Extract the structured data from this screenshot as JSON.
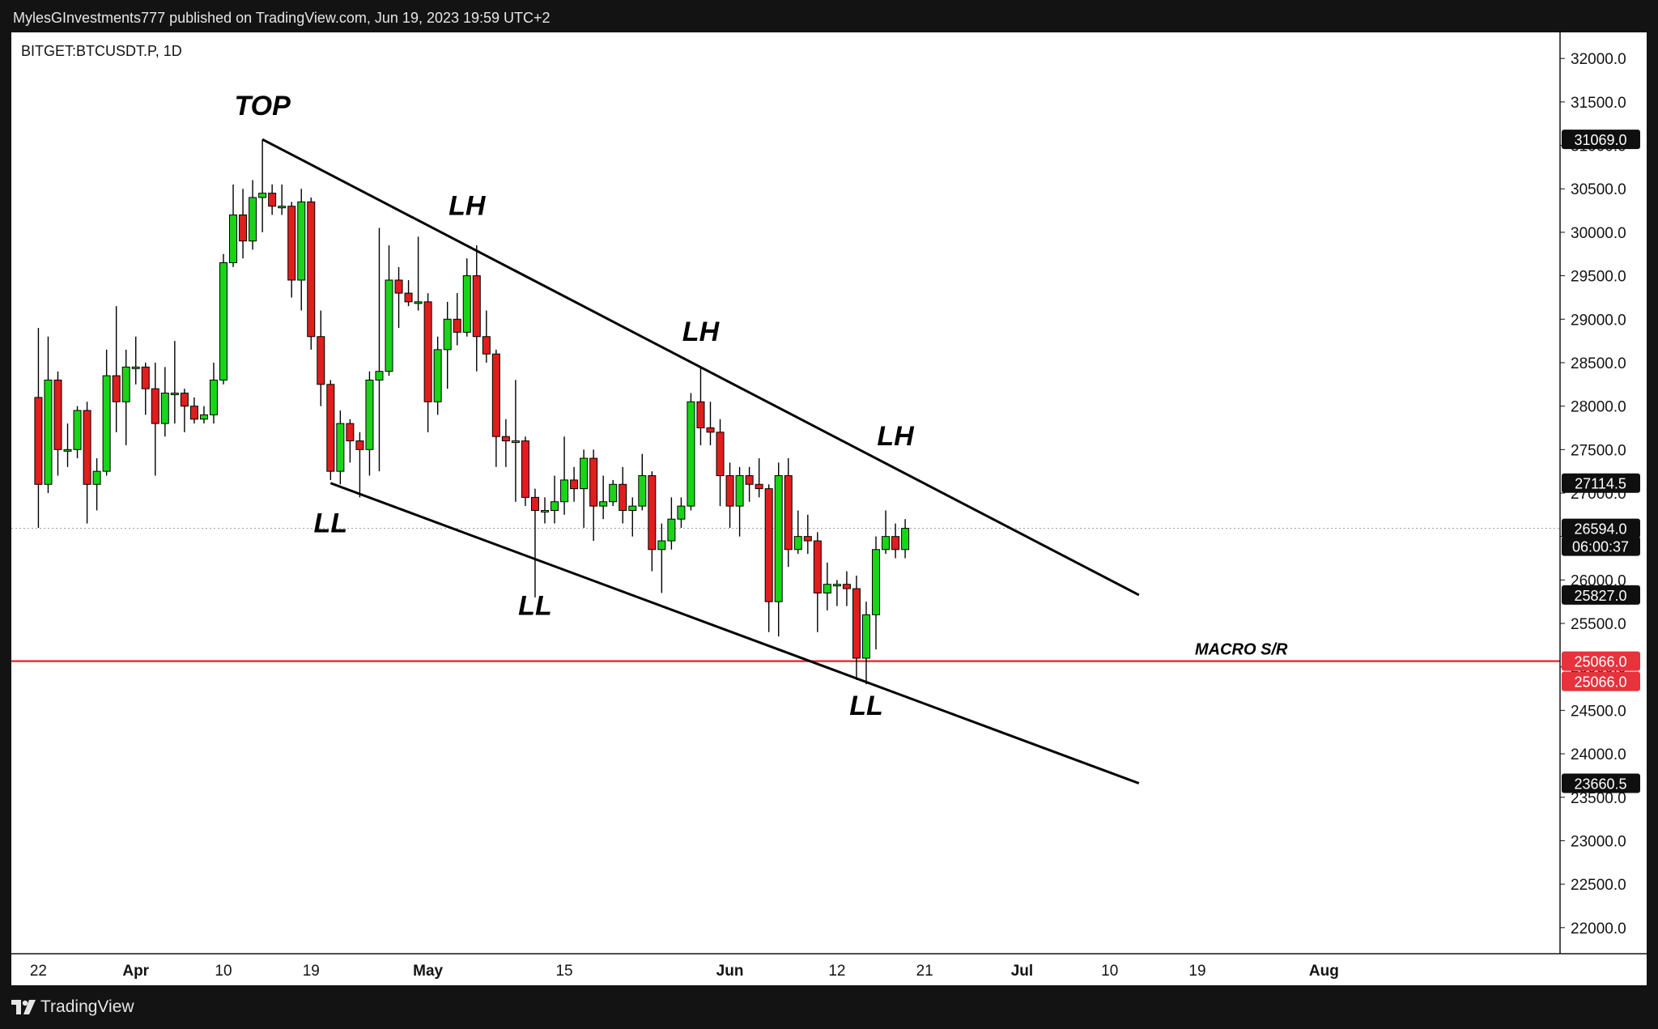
{
  "header": {
    "attribution": "MylesGInvestments777 published on TradingView.com, Jun 19, 2023 19:59 UTC+2"
  },
  "footer": {
    "brand": "TradingView",
    "logo_icon": "tradingview-logo-icon"
  },
  "colors": {
    "up": "#19d419",
    "down": "#e01e1e",
    "wick": "#000000",
    "support_line": "#e8323c",
    "background": "#ffffff",
    "frame": "#131313"
  },
  "chart_data": {
    "type": "candlestick",
    "symbol": "BITGET:BTCUSDT.P, 1D",
    "x_ticks": [
      "22",
      "Apr",
      "10",
      "19",
      "May",
      "15",
      "Jun",
      "12",
      "21",
      "Jul",
      "10",
      "19",
      "Aug"
    ],
    "y_ticks": [
      "22000.0",
      "22500.0",
      "23000.0",
      "23500.0",
      "24000.0",
      "24500.0",
      "25000.0",
      "25500.0",
      "26000.0",
      "26500.0",
      "27000.0",
      "27500.0",
      "28000.0",
      "28500.0",
      "29000.0",
      "29500.0",
      "30000.0",
      "30500.0",
      "31000.0",
      "31500.0",
      "32000.0"
    ],
    "ylim": [
      21700,
      32300
    ],
    "candles_note": "daily OHLC approx. Mar 22 – Jun 19, 2023",
    "candles": [
      {
        "d": "2023-03-22",
        "o": 28100,
        "h": 28900,
        "l": 26600,
        "c": 27100
      },
      {
        "d": "2023-03-23",
        "o": 27100,
        "h": 28800,
        "l": 27000,
        "c": 28300
      },
      {
        "d": "2023-03-24",
        "o": 28300,
        "h": 28400,
        "l": 27200,
        "c": 27500
      },
      {
        "d": "2023-03-25",
        "o": 27500,
        "h": 27800,
        "l": 27300,
        "c": 27500
      },
      {
        "d": "2023-03-26",
        "o": 27500,
        "h": 28000,
        "l": 27400,
        "c": 27950
      },
      {
        "d": "2023-03-27",
        "o": 27950,
        "h": 28050,
        "l": 26650,
        "c": 27100
      },
      {
        "d": "2023-03-28",
        "o": 27100,
        "h": 27400,
        "l": 26800,
        "c": 27250
      },
      {
        "d": "2023-03-29",
        "o": 27250,
        "h": 28650,
        "l": 27200,
        "c": 28350
      },
      {
        "d": "2023-03-30",
        "o": 28350,
        "h": 29150,
        "l": 27700,
        "c": 28050
      },
      {
        "d": "2023-03-31",
        "o": 28050,
        "h": 28650,
        "l": 27550,
        "c": 28450
      },
      {
        "d": "2023-04-01",
        "o": 28450,
        "h": 28800,
        "l": 28250,
        "c": 28450
      },
      {
        "d": "2023-04-02",
        "o": 28450,
        "h": 28500,
        "l": 27900,
        "c": 28200
      },
      {
        "d": "2023-04-03",
        "o": 28200,
        "h": 28500,
        "l": 27200,
        "c": 27800
      },
      {
        "d": "2023-04-04",
        "o": 27800,
        "h": 28450,
        "l": 27650,
        "c": 28150
      },
      {
        "d": "2023-04-05",
        "o": 28150,
        "h": 28750,
        "l": 27800,
        "c": 28150
      },
      {
        "d": "2023-04-06",
        "o": 28150,
        "h": 28200,
        "l": 27700,
        "c": 28000
      },
      {
        "d": "2023-04-07",
        "o": 28000,
        "h": 28100,
        "l": 27800,
        "c": 27850
      },
      {
        "d": "2023-04-08",
        "o": 27850,
        "h": 28000,
        "l": 27800,
        "c": 27900
      },
      {
        "d": "2023-04-09",
        "o": 27900,
        "h": 28500,
        "l": 27800,
        "c": 28300
      },
      {
        "d": "2023-04-10",
        "o": 28300,
        "h": 29750,
        "l": 28250,
        "c": 29650
      },
      {
        "d": "2023-04-11",
        "o": 29650,
        "h": 30550,
        "l": 29600,
        "c": 30200
      },
      {
        "d": "2023-04-12",
        "o": 30200,
        "h": 30500,
        "l": 29700,
        "c": 29900
      },
      {
        "d": "2023-04-13",
        "o": 29900,
        "h": 30600,
        "l": 29800,
        "c": 30400
      },
      {
        "d": "2023-04-14",
        "o": 30400,
        "h": 31069,
        "l": 30000,
        "c": 30450
      },
      {
        "d": "2023-04-15",
        "o": 30450,
        "h": 30550,
        "l": 30200,
        "c": 30300
      },
      {
        "d": "2023-04-16",
        "o": 30300,
        "h": 30550,
        "l": 30200,
        "c": 30300
      },
      {
        "d": "2023-04-17",
        "o": 30300,
        "h": 30350,
        "l": 29250,
        "c": 29450
      },
      {
        "d": "2023-04-18",
        "o": 29450,
        "h": 30500,
        "l": 29100,
        "c": 30350
      },
      {
        "d": "2023-04-19",
        "o": 30350,
        "h": 30400,
        "l": 28650,
        "c": 28800
      },
      {
        "d": "2023-04-20",
        "o": 28800,
        "h": 29100,
        "l": 28000,
        "c": 28250
      },
      {
        "d": "2023-04-21",
        "o": 28250,
        "h": 28300,
        "l": 27150,
        "c": 27250
      },
      {
        "d": "2023-04-22",
        "o": 27250,
        "h": 27950,
        "l": 27100,
        "c": 27800
      },
      {
        "d": "2023-04-23",
        "o": 27800,
        "h": 27850,
        "l": 27350,
        "c": 27600
      },
      {
        "d": "2023-04-24",
        "o": 27600,
        "h": 27700,
        "l": 26950,
        "c": 27500
      },
      {
        "d": "2023-04-25",
        "o": 27500,
        "h": 28400,
        "l": 27200,
        "c": 28300
      },
      {
        "d": "2023-04-26",
        "o": 28300,
        "h": 30050,
        "l": 27250,
        "c": 28400
      },
      {
        "d": "2023-04-27",
        "o": 28400,
        "h": 29850,
        "l": 28350,
        "c": 29450
      },
      {
        "d": "2023-04-28",
        "o": 29450,
        "h": 29600,
        "l": 28900,
        "c": 29300
      },
      {
        "d": "2023-04-29",
        "o": 29300,
        "h": 29450,
        "l": 29150,
        "c": 29200
      },
      {
        "d": "2023-04-30",
        "o": 29200,
        "h": 29950,
        "l": 29100,
        "c": 29200
      },
      {
        "d": "2023-05-01",
        "o": 29200,
        "h": 29300,
        "l": 27700,
        "c": 28050
      },
      {
        "d": "2023-05-02",
        "o": 28050,
        "h": 28800,
        "l": 27900,
        "c": 28650
      },
      {
        "d": "2023-05-03",
        "o": 28650,
        "h": 29200,
        "l": 28200,
        "c": 29000
      },
      {
        "d": "2023-05-04",
        "o": 29000,
        "h": 29300,
        "l": 28700,
        "c": 28850
      },
      {
        "d": "2023-05-05",
        "o": 28850,
        "h": 29700,
        "l": 28800,
        "c": 29500
      },
      {
        "d": "2023-05-06",
        "o": 29500,
        "h": 29850,
        "l": 28400,
        "c": 28800
      },
      {
        "d": "2023-05-07",
        "o": 28800,
        "h": 29100,
        "l": 28500,
        "c": 28600
      },
      {
        "d": "2023-05-08",
        "o": 28600,
        "h": 28650,
        "l": 27300,
        "c": 27650
      },
      {
        "d": "2023-05-09",
        "o": 27650,
        "h": 27850,
        "l": 27300,
        "c": 27600
      },
      {
        "d": "2023-05-10",
        "o": 27600,
        "h": 28300,
        "l": 26900,
        "c": 27600
      },
      {
        "d": "2023-05-11",
        "o": 27600,
        "h": 27650,
        "l": 26850,
        "c": 26950
      },
      {
        "d": "2023-05-12",
        "o": 26950,
        "h": 27050,
        "l": 25800,
        "c": 26800
      },
      {
        "d": "2023-05-13",
        "o": 26800,
        "h": 26950,
        "l": 26650,
        "c": 26800
      },
      {
        "d": "2023-05-14",
        "o": 26800,
        "h": 27200,
        "l": 26650,
        "c": 26900
      },
      {
        "d": "2023-05-15",
        "o": 26900,
        "h": 27650,
        "l": 26750,
        "c": 27150
      },
      {
        "d": "2023-05-16",
        "o": 27150,
        "h": 27300,
        "l": 26900,
        "c": 27050
      },
      {
        "d": "2023-05-17",
        "o": 27050,
        "h": 27500,
        "l": 26600,
        "c": 27400
      },
      {
        "d": "2023-05-18",
        "o": 27400,
        "h": 27500,
        "l": 26450,
        "c": 26850
      },
      {
        "d": "2023-05-19",
        "o": 26850,
        "h": 27200,
        "l": 26700,
        "c": 26900
      },
      {
        "d": "2023-05-20",
        "o": 26900,
        "h": 27150,
        "l": 26850,
        "c": 27100
      },
      {
        "d": "2023-05-21",
        "o": 27100,
        "h": 27300,
        "l": 26650,
        "c": 26800
      },
      {
        "d": "2023-05-22",
        "o": 26800,
        "h": 26950,
        "l": 26500,
        "c": 26850
      },
      {
        "d": "2023-05-23",
        "o": 26850,
        "h": 27450,
        "l": 26800,
        "c": 27200
      },
      {
        "d": "2023-05-24",
        "o": 27200,
        "h": 27250,
        "l": 26100,
        "c": 26350
      },
      {
        "d": "2023-05-25",
        "o": 26350,
        "h": 26650,
        "l": 25850,
        "c": 26450
      },
      {
        "d": "2023-05-26",
        "o": 26450,
        "h": 26950,
        "l": 26350,
        "c": 26700
      },
      {
        "d": "2023-05-27",
        "o": 26700,
        "h": 26950,
        "l": 26600,
        "c": 26850
      },
      {
        "d": "2023-05-28",
        "o": 26850,
        "h": 28150,
        "l": 26800,
        "c": 28050
      },
      {
        "d": "2023-05-29",
        "o": 28050,
        "h": 28450,
        "l": 27550,
        "c": 27750
      },
      {
        "d": "2023-05-30",
        "o": 27750,
        "h": 28050,
        "l": 27550,
        "c": 27700
      },
      {
        "d": "2023-05-31",
        "o": 27700,
        "h": 27850,
        "l": 26850,
        "c": 27200
      },
      {
        "d": "2023-06-01",
        "o": 27200,
        "h": 27350,
        "l": 26600,
        "c": 26850
      },
      {
        "d": "2023-06-02",
        "o": 26850,
        "h": 27300,
        "l": 26500,
        "c": 27200
      },
      {
        "d": "2023-06-03",
        "o": 27200,
        "h": 27300,
        "l": 26900,
        "c": 27100
      },
      {
        "d": "2023-06-04",
        "o": 27100,
        "h": 27400,
        "l": 26950,
        "c": 27050
      },
      {
        "d": "2023-06-05",
        "o": 27050,
        "h": 27100,
        "l": 25400,
        "c": 25750
      },
      {
        "d": "2023-06-06",
        "o": 25750,
        "h": 27350,
        "l": 25350,
        "c": 27200
      },
      {
        "d": "2023-06-07",
        "o": 27200,
        "h": 27400,
        "l": 26150,
        "c": 26350
      },
      {
        "d": "2023-06-08",
        "o": 26350,
        "h": 26800,
        "l": 26300,
        "c": 26500
      },
      {
        "d": "2023-06-09",
        "o": 26500,
        "h": 26750,
        "l": 26300,
        "c": 26450
      },
      {
        "d": "2023-06-10",
        "o": 26450,
        "h": 26550,
        "l": 25400,
        "c": 25850
      },
      {
        "d": "2023-06-11",
        "o": 25850,
        "h": 26200,
        "l": 25650,
        "c": 25950
      },
      {
        "d": "2023-06-12",
        "o": 25950,
        "h": 26000,
        "l": 25700,
        "c": 25950
      },
      {
        "d": "2023-06-13",
        "o": 25950,
        "h": 26100,
        "l": 25700,
        "c": 25900
      },
      {
        "d": "2023-06-14",
        "o": 25900,
        "h": 26050,
        "l": 24850,
        "c": 25100
      },
      {
        "d": "2023-06-15",
        "o": 25100,
        "h": 25750,
        "l": 24800,
        "c": 25600
      },
      {
        "d": "2023-06-16",
        "o": 25600,
        "h": 26500,
        "l": 25200,
        "c": 26350
      },
      {
        "d": "2023-06-17",
        "o": 26350,
        "h": 26800,
        "l": 26300,
        "c": 26500
      },
      {
        "d": "2023-06-18",
        "o": 26500,
        "h": 26650,
        "l": 26250,
        "c": 26350
      },
      {
        "d": "2023-06-19",
        "o": 26350,
        "h": 26700,
        "l": 26250,
        "c": 26594
      }
    ],
    "trendlines": [
      {
        "name": "upper-channel",
        "from": {
          "d": "2023-04-14",
          "v": 31069
        },
        "to": {
          "d": "2023-07-13",
          "v": 25827
        }
      },
      {
        "name": "lower-channel",
        "from": {
          "d": "2023-04-21",
          "v": 27114
        },
        "to": {
          "d": "2023-07-13",
          "v": 23660.5
        }
      }
    ],
    "horizontal_lines": [
      {
        "name": "macro-sr",
        "value": 25066.0,
        "label": "MACRO S/R"
      }
    ],
    "current_price_line": 26594.0,
    "annotations": [
      {
        "text": "TOP",
        "d": "2023-04-14",
        "v": 31350
      },
      {
        "text": "LH",
        "d": "2023-05-05",
        "v": 30200
      },
      {
        "text": "LH",
        "d": "2023-05-29",
        "v": 28750
      },
      {
        "text": "LH",
        "d": "2023-06-18",
        "v": 27550
      },
      {
        "text": "LL",
        "d": "2023-04-21",
        "v": 26550
      },
      {
        "text": "LL",
        "d": "2023-05-12",
        "v": 25600
      },
      {
        "text": "LL",
        "d": "2023-06-15",
        "v": 24450
      }
    ],
    "price_labels": [
      {
        "text": "31069.0",
        "v": 31069,
        "kind": "dark"
      },
      {
        "text": "27114.5",
        "v": 27114.5,
        "kind": "dark"
      },
      {
        "text": "26594.0",
        "v": 26594,
        "kind": "dark"
      },
      {
        "text": "06:00:37",
        "v": 26594,
        "kind": "countdown"
      },
      {
        "text": "25827.0",
        "v": 25827,
        "kind": "dark"
      },
      {
        "text": "25066.0",
        "v": 25066,
        "kind": "red"
      },
      {
        "text": "25066.0",
        "v": 25066,
        "kind": "red2"
      },
      {
        "text": "23660.5",
        "v": 23660.5,
        "kind": "dark"
      }
    ]
  }
}
